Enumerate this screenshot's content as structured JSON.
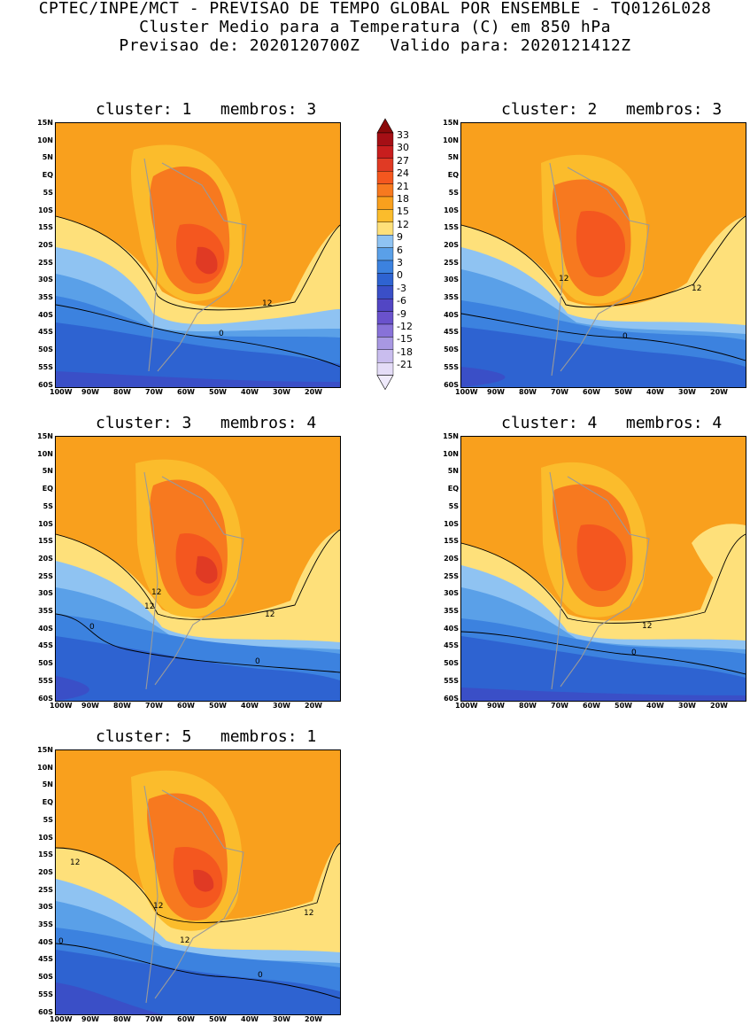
{
  "header": {
    "line1": "CPTEC/INPE/MCT - PREVISAO DE TEMPO GLOBAL POR ENSEMBLE - TQ0126L028",
    "line2": "Cluster Medio para a Temperatura (C) em 850 hPa",
    "line3": "Previsao de: 2020120700Z   Valido para: 2020121412Z"
  },
  "axes": {
    "lat_labels": [
      "15N",
      "10N",
      "5N",
      "EQ",
      "5S",
      "10S",
      "15S",
      "20S",
      "25S",
      "30S",
      "35S",
      "40S",
      "45S",
      "50S",
      "55S",
      "60S"
    ],
    "lon_labels": [
      "100W",
      "90W",
      "80W",
      "70W",
      "60W",
      "50W",
      "40W",
      "30W",
      "20W"
    ]
  },
  "panels": [
    {
      "title": "cluster: 1   membros: 3",
      "contour_labels": [
        "12",
        "0"
      ]
    },
    {
      "title": "cluster: 2   membros: 3",
      "contour_labels": [
        "12",
        "12",
        "0"
      ]
    },
    {
      "title": "cluster: 3   membros: 4",
      "contour_labels": [
        "12",
        "12",
        "12",
        "0",
        "0"
      ]
    },
    {
      "title": "cluster: 4   membros: 4",
      "contour_labels": [
        "12",
        "0"
      ]
    },
    {
      "title": "cluster: 5   membros: 1",
      "contour_labels": [
        "12",
        "12",
        "12",
        "12",
        "0",
        "0"
      ]
    }
  ],
  "colorbar": {
    "labels": [
      "33",
      "30",
      "27",
      "24",
      "21",
      "18",
      "15",
      "12",
      "9",
      "6",
      "3",
      "0",
      "-3",
      "-6",
      "-9",
      "-12",
      "-15",
      "-18",
      "-21"
    ],
    "colors": [
      "#a50f15",
      "#c81e1e",
      "#e03a24",
      "#f4571f",
      "#f7791f",
      "#f9a01d",
      "#fbbc2c",
      "#fee07a",
      "#8fc3f2",
      "#5aa0e8",
      "#3c82df",
      "#2e63d1",
      "#3a4fc7",
      "#5246c4",
      "#6a52cc",
      "#8872d8",
      "#a898e2",
      "#c9bdee",
      "#e4dcf7"
    ],
    "top_arrow_color": "#8b0a0a",
    "bottom_arrow_color": "#efeafb"
  }
}
